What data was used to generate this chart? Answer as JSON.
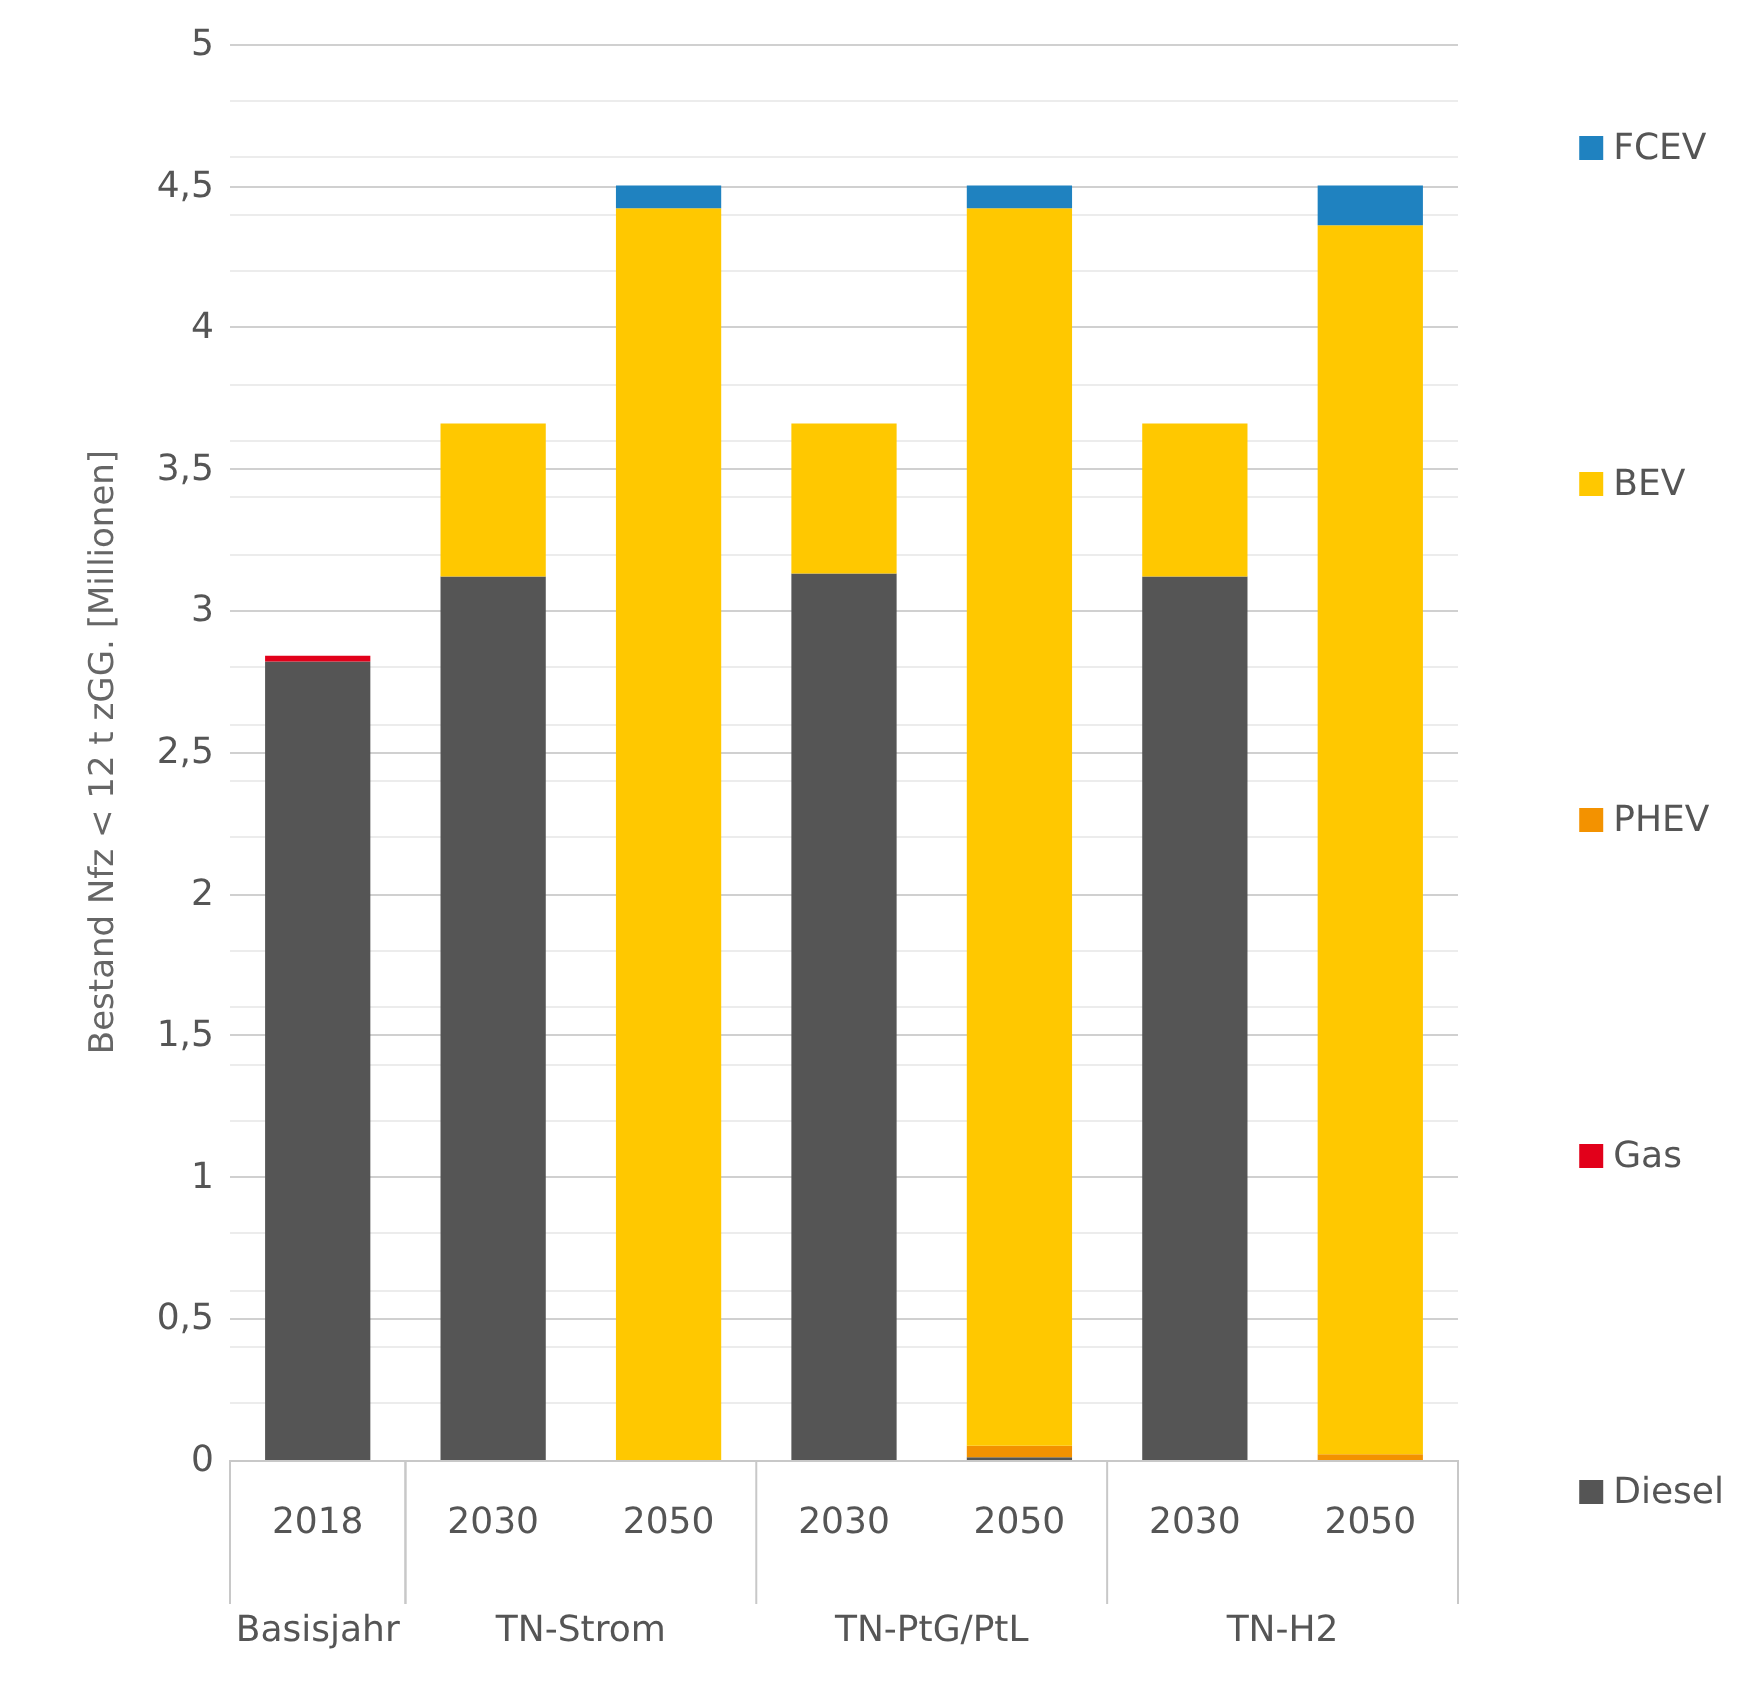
{
  "chart_data": {
    "type": "bar",
    "stacked": true,
    "ylabel": "Bestand Nfz < 12 t zGG. [Millionen]",
    "categories": [
      "2018",
      "2030",
      "2050",
      "2030",
      "2050",
      "2030",
      "2050"
    ],
    "annotations": [
      "Basisjahr",
      "TN-Strom",
      "TN-PtG/PtL",
      "TN-H2"
    ],
    "series": [
      {
        "name": "Diesel",
        "color": "#555555",
        "values": [
          2.82,
          3.12,
          0,
          3.13,
          0.01,
          3.12,
          0
        ]
      },
      {
        "name": "Gas",
        "color": "#e2001a",
        "values": [
          0.02,
          0,
          0,
          0,
          0,
          0,
          0
        ]
      },
      {
        "name": "PHEV",
        "color": "#f39200",
        "values": [
          0,
          0,
          0,
          0,
          0.04,
          0,
          0.02
        ]
      },
      {
        "name": "BEV",
        "color": "#ffc800",
        "values": [
          0,
          0.54,
          4.42,
          0.53,
          4.37,
          0.54,
          4.34
        ]
      },
      {
        "name": "FCEV",
        "color": "#1f82c0",
        "values": [
          0,
          0,
          0.08,
          0,
          0.08,
          0,
          0.14
        ]
      }
    ],
    "ylim": [
      0,
      5
    ],
    "yticks": [
      0,
      {
        "value": 0.5,
        "label": "0,5"
      },
      1,
      {
        "value": 1.5,
        "label": "1,5"
      },
      2,
      {
        "value": 2.5,
        "label": "2,5"
      },
      3,
      {
        "value": 3.5,
        "label": "3,5"
      },
      4,
      {
        "value": 4.5,
        "label": "4,5"
      },
      5
    ],
    "grid": "y",
    "legend": "right"
  }
}
